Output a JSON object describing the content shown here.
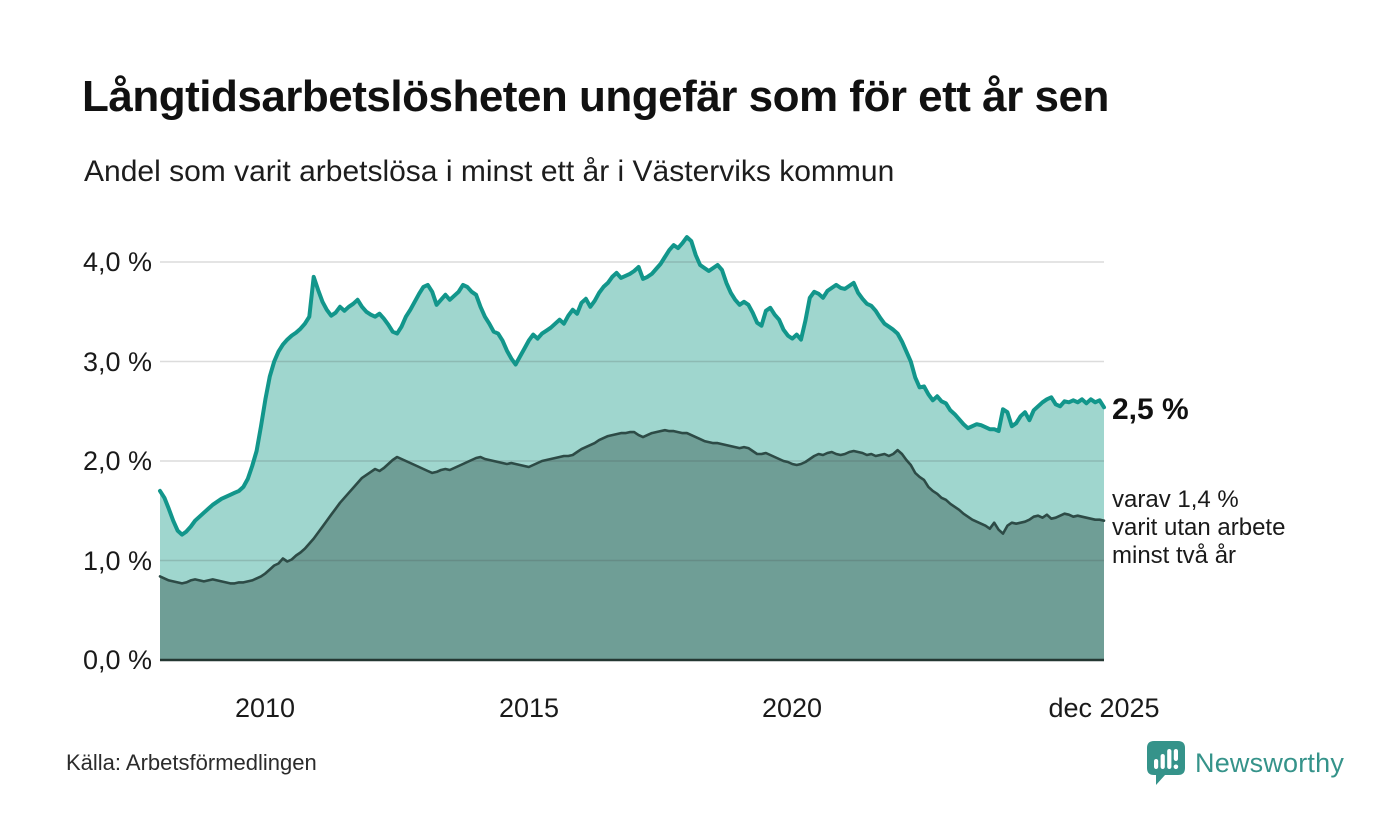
{
  "header": {
    "title": "Långtidsarbetslösheten ungefär som för ett år sen",
    "subtitle": "Andel som varit arbetslösa i minst ett år i Västerviks kommun"
  },
  "chart_data": {
    "type": "area",
    "title": "Långtidsarbetslösheten ungefär som för ett år sen",
    "subtitle": "Andel som varit arbetslösa i minst ett år i Västerviks kommun",
    "unit": "%",
    "frequency": "monthly",
    "x_start": "2008-01",
    "x_end": "2025-12",
    "ylim": [
      0,
      4.3
    ],
    "grid": "horizontal",
    "y_gridline_values": [
      1,
      2,
      3,
      4
    ],
    "y_tick_labels_top_down": [
      "4,0 %",
      "3,0 %",
      "2,0 %",
      "1,0 %",
      "0,0 %"
    ],
    "x_tick_labels": [
      "2010",
      "2015",
      "2020",
      "dec 2025"
    ],
    "x_tick_month_index": [
      24,
      84,
      144,
      215
    ],
    "end_labels": {
      "primary": "2,5 %",
      "secondary_line1": "varav 1,4 %",
      "secondary_line2": "varit utan arbete",
      "secondary_line3": "minst två år"
    },
    "colors": {
      "series1_line": "#12968b",
      "series1_fill": "#9fd6ce",
      "series2_line": "#2d4b46",
      "series2_fill": "#6f9e96",
      "gridline": "rgba(60,60,60,0.18)",
      "baseline": "#243732"
    },
    "series": [
      {
        "name": "Andel som varit arbetslösa i minst ett år",
        "last_value": 2.5,
        "values": [
          1.7,
          1.63,
          1.52,
          1.4,
          1.3,
          1.26,
          1.29,
          1.34,
          1.4,
          1.44,
          1.48,
          1.52,
          1.56,
          1.59,
          1.62,
          1.64,
          1.66,
          1.68,
          1.7,
          1.74,
          1.82,
          1.95,
          2.1,
          2.35,
          2.62,
          2.85,
          3.0,
          3.1,
          3.17,
          3.22,
          3.26,
          3.29,
          3.33,
          3.38,
          3.45,
          3.85,
          3.72,
          3.6,
          3.52,
          3.46,
          3.49,
          3.55,
          3.51,
          3.55,
          3.58,
          3.62,
          3.55,
          3.5,
          3.47,
          3.45,
          3.48,
          3.43,
          3.37,
          3.3,
          3.28,
          3.35,
          3.45,
          3.52,
          3.6,
          3.68,
          3.75,
          3.77,
          3.7,
          3.57,
          3.62,
          3.67,
          3.62,
          3.66,
          3.7,
          3.77,
          3.75,
          3.7,
          3.67,
          3.55,
          3.45,
          3.38,
          3.3,
          3.28,
          3.21,
          3.11,
          3.03,
          2.97,
          3.05,
          3.13,
          3.21,
          3.27,
          3.23,
          3.28,
          3.31,
          3.34,
          3.38,
          3.42,
          3.38,
          3.46,
          3.52,
          3.48,
          3.59,
          3.63,
          3.55,
          3.61,
          3.69,
          3.75,
          3.79,
          3.85,
          3.89,
          3.84,
          3.86,
          3.88,
          3.91,
          3.95,
          3.83,
          3.85,
          3.88,
          3.93,
          3.98,
          4.05,
          4.12,
          4.17,
          4.14,
          4.19,
          4.25,
          4.21,
          4.07,
          3.97,
          3.94,
          3.91,
          3.94,
          3.97,
          3.92,
          3.79,
          3.69,
          3.62,
          3.57,
          3.6,
          3.57,
          3.49,
          3.39,
          3.36,
          3.51,
          3.54,
          3.47,
          3.42,
          3.32,
          3.26,
          3.23,
          3.27,
          3.22,
          3.41,
          3.64,
          3.7,
          3.68,
          3.64,
          3.71,
          3.74,
          3.77,
          3.74,
          3.73,
          3.76,
          3.79,
          3.69,
          3.63,
          3.58,
          3.56,
          3.51,
          3.44,
          3.38,
          3.35,
          3.32,
          3.28,
          3.2,
          3.1,
          3.0,
          2.84,
          2.74,
          2.75,
          2.67,
          2.61,
          2.65,
          2.6,
          2.58,
          2.51,
          2.47,
          2.42,
          2.37,
          2.33,
          2.35,
          2.37,
          2.36,
          2.34,
          2.32,
          2.32,
          2.3,
          2.52,
          2.49,
          2.35,
          2.38,
          2.45,
          2.49,
          2.41,
          2.51,
          2.55,
          2.59,
          2.62,
          2.64,
          2.57,
          2.55,
          2.6,
          2.59,
          2.61,
          2.59,
          2.62,
          2.58,
          2.62,
          2.59,
          2.61,
          2.54
        ]
      },
      {
        "name": "varav varit utan arbete minst två år",
        "last_value": 1.4,
        "values": [
          0.84,
          0.82,
          0.8,
          0.79,
          0.78,
          0.77,
          0.78,
          0.8,
          0.81,
          0.8,
          0.79,
          0.8,
          0.81,
          0.8,
          0.79,
          0.78,
          0.77,
          0.77,
          0.78,
          0.78,
          0.79,
          0.8,
          0.82,
          0.84,
          0.87,
          0.91,
          0.95,
          0.97,
          1.02,
          0.99,
          1.01,
          1.05,
          1.08,
          1.12,
          1.17,
          1.22,
          1.28,
          1.34,
          1.4,
          1.46,
          1.52,
          1.58,
          1.63,
          1.68,
          1.73,
          1.78,
          1.83,
          1.86,
          1.89,
          1.92,
          1.9,
          1.93,
          1.97,
          2.01,
          2.04,
          2.02,
          2.0,
          1.98,
          1.96,
          1.94,
          1.92,
          1.9,
          1.88,
          1.89,
          1.91,
          1.92,
          1.91,
          1.93,
          1.95,
          1.97,
          1.99,
          2.01,
          2.03,
          2.04,
          2.02,
          2.01,
          2.0,
          1.99,
          1.98,
          1.97,
          1.98,
          1.97,
          1.96,
          1.95,
          1.94,
          1.96,
          1.98,
          2.0,
          2.01,
          2.02,
          2.03,
          2.04,
          2.05,
          2.05,
          2.06,
          2.09,
          2.12,
          2.14,
          2.16,
          2.18,
          2.21,
          2.23,
          2.25,
          2.26,
          2.27,
          2.28,
          2.28,
          2.29,
          2.29,
          2.26,
          2.24,
          2.26,
          2.28,
          2.29,
          2.3,
          2.31,
          2.3,
          2.3,
          2.29,
          2.28,
          2.28,
          2.26,
          2.24,
          2.22,
          2.2,
          2.19,
          2.18,
          2.18,
          2.17,
          2.16,
          2.15,
          2.14,
          2.13,
          2.14,
          2.13,
          2.1,
          2.07,
          2.07,
          2.08,
          2.06,
          2.04,
          2.02,
          2.0,
          1.99,
          1.97,
          1.96,
          1.97,
          1.99,
          2.02,
          2.05,
          2.07,
          2.06,
          2.08,
          2.09,
          2.07,
          2.06,
          2.07,
          2.09,
          2.1,
          2.09,
          2.08,
          2.06,
          2.07,
          2.05,
          2.06,
          2.07,
          2.05,
          2.07,
          2.11,
          2.07,
          2.01,
          1.96,
          1.88,
          1.84,
          1.81,
          1.74,
          1.7,
          1.67,
          1.63,
          1.61,
          1.57,
          1.54,
          1.51,
          1.47,
          1.44,
          1.41,
          1.39,
          1.37,
          1.35,
          1.32,
          1.38,
          1.31,
          1.27,
          1.35,
          1.38,
          1.37,
          1.38,
          1.39,
          1.41,
          1.44,
          1.45,
          1.43,
          1.46,
          1.42,
          1.43,
          1.45,
          1.47,
          1.46,
          1.44,
          1.45,
          1.44,
          1.43,
          1.42,
          1.41,
          1.41,
          1.4
        ]
      }
    ]
  },
  "footer": {
    "source": "Källa: Arbetsförmedlingen",
    "brand": "Newsworthy"
  }
}
